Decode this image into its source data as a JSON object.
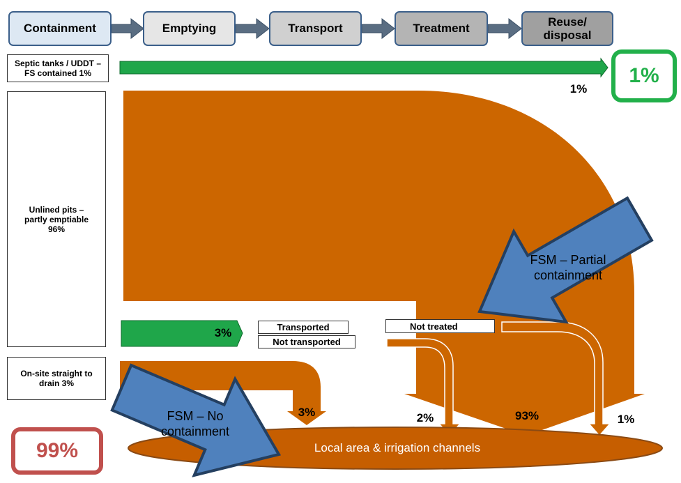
{
  "stages": [
    "Containment",
    "Emptying",
    "Transport",
    "Treatment",
    "Reuse/ disposal"
  ],
  "containment": [
    "Septic tanks / UDDT – FS contained 1%",
    "Unlined pits – partly emptiable 96%",
    "On-site straight to drain 3%"
  ],
  "flows": {
    "contained": "1%",
    "emptied": "3%",
    "transported": "Transported",
    "not_transported": "Not transported",
    "not_treated": "Not treated",
    "drain": "3%",
    "not_transported_share": "2%",
    "not_emptied": "93%",
    "not_treated_share": "1%"
  },
  "annotations": [
    "FSM – Partial containment",
    "FSM – No containment"
  ],
  "summary": {
    "safe": "1%",
    "unsafe": "99%"
  },
  "destination": "Local area & irrigation channels"
}
